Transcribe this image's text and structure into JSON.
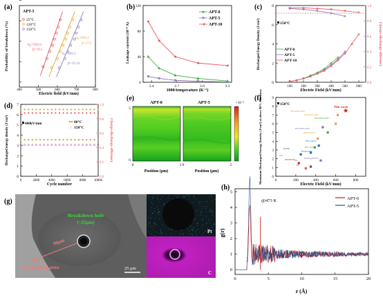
{
  "panels": {
    "a": {
      "letter": "(a)",
      "legend_title": "APT-5",
      "ylabel": "Probability of breakdown (%)",
      "xlabel": "Electric field (kV/mm)",
      "legend": [
        "25°C",
        "120°C",
        "150°C"
      ],
      "ann": [
        {
          "e": "E",
          "sub": "b",
          "val": "=592.9",
          "b": "β=19.5"
        },
        {
          "e": "E",
          "sub": "b",
          "val": "=656.1",
          "b": "β=17.2"
        },
        {
          "e": "E",
          "sub": "b",
          "val": "=699.5",
          "b": "β=19.14"
        }
      ]
    },
    "b": {
      "letter": "(b)",
      "ylabel": "Leakage current (10⁻⁸ A)",
      "xlabel": "1000/temperature (K⁻¹)",
      "legend": [
        "APT-0",
        "APT-5",
        "APT-10"
      ]
    },
    "c": {
      "letter": "(c)",
      "ylabel": "Discharged Energy Density (J/cm³)",
      "ylabel2": "Charge-discharge efficiency",
      "xlabel": "Electric Field (kV/mm)",
      "temp": "150°C",
      "legend": [
        "APT-0",
        "APT-5",
        "APT-10"
      ]
    },
    "d": {
      "letter": "(d)",
      "ylabel": "Discharged energy density (J/cm³)",
      "ylabel2": "Charge-discharge efficiency",
      "xlabel": "Cycle number",
      "field": "400kV/mm",
      "legend": [
        "80°C",
        "150°C"
      ]
    },
    "e": {
      "letter": "(e)",
      "titles": [
        "APT-0",
        "APT-5"
      ],
      "xlabel": "Position (μm)",
      "colorbar_top": "×10⁻⁵"
    },
    "f": {
      "letter": "(f)",
      "ylabel": "Maximum Discharged Energy Density (J/cm³) at above 90% efficiency",
      "xlabel": "Electric Field (kV/mm)",
      "temp": "150°C",
      "this_work": "This work",
      "labels": [
        "PEI-PEEK/PEI",
        "PEI-PEEK/PEI",
        "PEI-PEEK/PEI",
        "PEI-PEEK/PEI",
        "c-BCB/BNNS",
        "PEI-Al2O3",
        "PEI-TiO2",
        "BOPP",
        "PEI",
        "PI",
        "BNNS/PEI",
        "BNNS@BNNT",
        "PEI/BNNS",
        "PC"
      ]
    },
    "g": {
      "letter": "(g)",
      "breakdown": "Breakdown hole",
      "breakdown_size": "(~25μm)",
      "distance": "90μm",
      "self_healing": "Self healing area",
      "scale": "25 μm",
      "pt": "Pt",
      "c": "C"
    },
    "h": {
      "letter": "(h)",
      "ylabel": "g(r)",
      "xlabel": "r (Å)",
      "temp": "@473 K",
      "legend": [
        "APT-0",
        "APT-5"
      ]
    }
  },
  "chart_data": [
    {
      "panel": "a",
      "type": "scatter",
      "xlabel": "Electric field (kV/mm)",
      "ylabel": "Probability of breakdown (%)",
      "xlim": [
        400,
        800
      ],
      "xticks": [
        400,
        500,
        600,
        700,
        800
      ],
      "yticks": [
        -4,
        -2,
        0,
        2,
        4
      ],
      "series": [
        {
          "name": "25°C",
          "color": "#e8565a",
          "x": [
            525,
            545,
            560,
            575,
            585,
            595,
            605,
            615
          ],
          "y": [
            -2.5,
            -1.7,
            -1.0,
            -0.4,
            0.2,
            0.8,
            1.4,
            2.1
          ]
        },
        {
          "name": "120°C",
          "color": "#e6a13a",
          "x": [
            570,
            600,
            615,
            630,
            645,
            655,
            665,
            680
          ],
          "y": [
            -2.6,
            -1.7,
            -1.0,
            -0.4,
            0.2,
            0.8,
            1.4,
            2.1
          ]
        },
        {
          "name": "150°C",
          "color": "#8c7fb7",
          "x": [
            610,
            640,
            655,
            670,
            690,
            700,
            710,
            725
          ],
          "y": [
            -2.6,
            -1.7,
            -1.0,
            -0.4,
            0.2,
            0.8,
            1.4,
            2.1
          ]
        }
      ]
    },
    {
      "panel": "b",
      "type": "line",
      "xlabel": "1000/temperature (K⁻¹)",
      "ylabel": "Leakage current (10⁻⁸ A)",
      "xlim": [
        2.3,
        3.35
      ],
      "ylim": [
        0,
        120
      ],
      "xticks": [
        2.4,
        2.7,
        3.0,
        3.3
      ],
      "yticks": [
        0,
        40,
        80,
        120
      ],
      "series": [
        {
          "name": "APT-0",
          "color": "#3aab3a",
          "marker": "triangle",
          "x": [
            2.36,
            2.49,
            2.68,
            2.95,
            3.3
          ],
          "y": [
            40,
            22,
            11,
            6,
            2
          ]
        },
        {
          "name": "APT-5",
          "color": "#8c6fb7",
          "marker": "triangle-down",
          "x": [
            2.36,
            2.49,
            2.68,
            2.95,
            3.3
          ],
          "y": [
            9,
            6,
            3,
            1.5,
            0.5
          ]
        },
        {
          "name": "APT-10",
          "color": "#e8565a",
          "marker": "triangle-left",
          "x": [
            2.36,
            2.49,
            2.68,
            2.95,
            3.3
          ],
          "y": [
            95,
            65,
            40,
            30,
            26
          ]
        }
      ]
    },
    {
      "panel": "c",
      "type": "line",
      "xlabel": "Electric Field (kV/mm)",
      "ylabel": "Discharged Energy Density (J/cm³)",
      "xlim": [
        0,
        650
      ],
      "ylim": [
        0,
        8
      ],
      "xticks": [
        100,
        200,
        300,
        400,
        500,
        600
      ],
      "yticks": [
        0,
        2,
        4,
        6,
        8
      ],
      "y2lim": [
        0,
        1
      ],
      "series": [
        {
          "name": "APT-0",
          "color": "#3aab3a",
          "x": [
            100,
            150,
            200,
            250,
            300,
            350,
            400,
            450
          ],
          "y": [
            0.1,
            0.2,
            0.4,
            0.7,
            1.0,
            1.4,
            2.0,
            2.6
          ]
        },
        {
          "name": "APT-5",
          "color": "#8c6fb7",
          "x": [
            100,
            150,
            200,
            250,
            300,
            350,
            400,
            450,
            500
          ],
          "y": [
            0.1,
            0.2,
            0.4,
            0.6,
            0.9,
            1.3,
            1.8,
            2.4,
            3.2
          ]
        },
        {
          "name": "APT-10",
          "color": "#e8565a",
          "x": [
            100,
            150,
            200,
            250,
            300,
            350,
            400,
            450,
            500,
            550,
            600
          ],
          "y": [
            0.1,
            0.2,
            0.4,
            0.6,
            0.9,
            1.2,
            1.7,
            2.3,
            3.0,
            4.0,
            5.0
          ]
        },
        {
          "name": "eff APT-10",
          "color": "#e8565a",
          "axis": "right",
          "x": [
            100,
            200,
            300,
            400,
            500,
            600
          ],
          "y": [
            0.97,
            0.97,
            0.96,
            0.95,
            0.93,
            0.91
          ]
        },
        {
          "name": "eff APT-5",
          "color": "#8c6fb7",
          "axis": "right",
          "x": [
            100,
            200,
            300,
            400,
            500
          ],
          "y": [
            0.96,
            0.95,
            0.93,
            0.9,
            0.86
          ]
        }
      ]
    },
    {
      "panel": "d",
      "type": "scatter",
      "xlabel": "Cycle number",
      "ylabel": "Discharged energy density (J/cm³)",
      "xlim": [
        0,
        10000
      ],
      "ylim": [
        0,
        7
      ],
      "xticks": [
        0,
        2000,
        4000,
        6000,
        8000,
        10000
      ],
      "yticks": [
        0,
        1,
        2,
        3,
        4,
        5,
        6,
        7
      ],
      "y2lim": [
        0,
        1
      ],
      "series": [
        {
          "name": "80°C",
          "color": "#e6a13a",
          "y_const": 3.55
        },
        {
          "name": "150°C",
          "color": "#b07ab7",
          "y_const": 3.05
        },
        {
          "name": "eff 80°C",
          "color": "#e6a13a",
          "axis": "right",
          "y_const": 0.93
        },
        {
          "name": "eff 150°C",
          "color": "#e8565a",
          "axis": "right",
          "y_const": 0.88
        }
      ]
    },
    {
      "panel": "f",
      "type": "scatter",
      "xlabel": "Electric Field (kV/mm)",
      "xlim": [
        0,
        900
      ],
      "ylim": [
        0,
        9
      ],
      "xticks": [
        0,
        200,
        400,
        600,
        800
      ],
      "yticks": [
        0,
        1,
        2,
        3,
        4,
        5,
        6,
        7,
        8,
        9
      ],
      "points": [
        [
          700,
          7.5
        ],
        [
          600,
          6.0
        ],
        [
          620,
          7.0
        ],
        [
          520,
          5.0
        ],
        [
          470,
          5.6
        ],
        [
          420,
          4.3
        ],
        [
          430,
          3.5
        ],
        [
          390,
          3.3
        ],
        [
          350,
          1.1
        ],
        [
          300,
          0.9
        ],
        [
          250,
          2.5
        ],
        [
          350,
          2.7
        ],
        [
          450,
          1.8
        ],
        [
          230,
          1.5
        ]
      ]
    },
    {
      "panel": "h",
      "type": "line",
      "xlabel": "r (Å)",
      "ylabel": "g(r)",
      "xlim": [
        0,
        20
      ],
      "ylim": [
        0,
        5
      ],
      "xticks": [
        0,
        5,
        10,
        15,
        20
      ],
      "yticks": [
        0,
        1,
        2,
        3,
        4,
        5
      ]
    }
  ]
}
